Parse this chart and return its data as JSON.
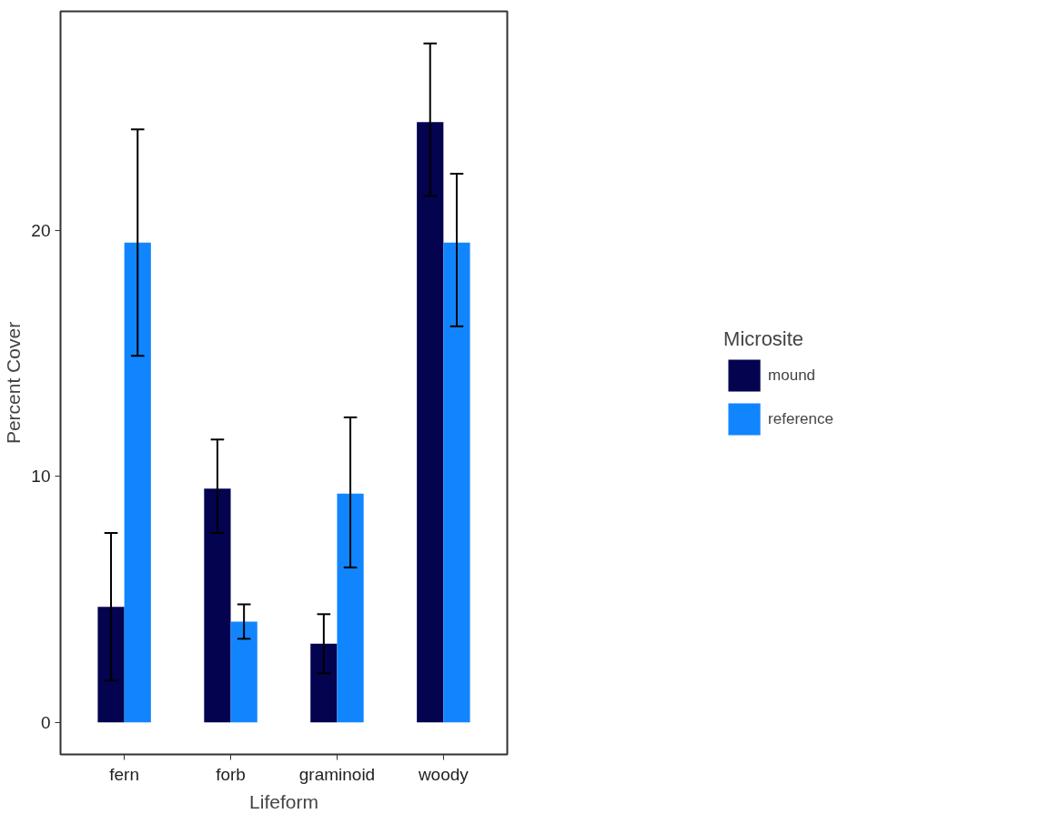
{
  "chart_data": {
    "type": "bar",
    "xlabel": "Lifeform",
    "ylabel": "Percent Cover",
    "legend_title": "Microsite",
    "categories": [
      "fern",
      "forb",
      "graminoid",
      "woody"
    ],
    "series": [
      {
        "name": "mound",
        "color": "#03034f",
        "values": [
          4.7,
          9.5,
          3.2,
          24.4
        ],
        "errors": [
          [
            1.7,
            7.7
          ],
          [
            7.7,
            11.5
          ],
          [
            2.0,
            4.4
          ],
          [
            21.4,
            27.6
          ]
        ]
      },
      {
        "name": "reference",
        "color": "#1185fe",
        "values": [
          19.5,
          4.1,
          9.3,
          19.5
        ],
        "errors": [
          [
            14.9,
            24.1
          ],
          [
            3.4,
            4.8
          ],
          [
            6.3,
            12.4
          ],
          [
            16.1,
            22.3
          ]
        ]
      }
    ],
    "ylim": [
      -1.3,
      28.9
    ],
    "yticks": [
      0,
      10,
      20
    ],
    "grid": false,
    "legend": "right"
  }
}
